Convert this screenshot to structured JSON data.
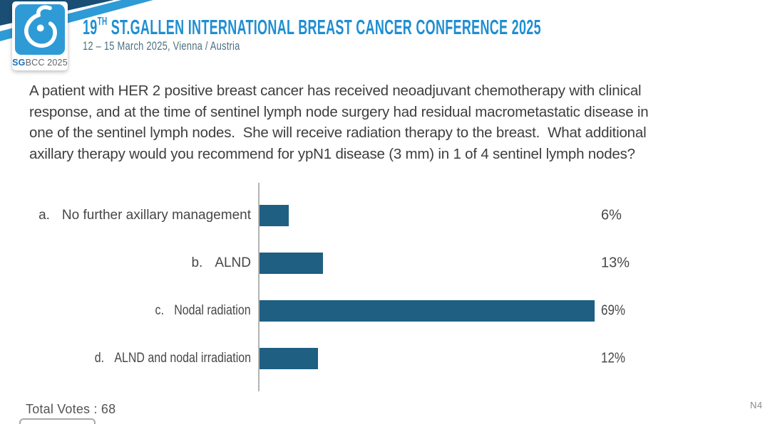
{
  "header": {
    "logo_sg": "SG",
    "logo_rest": "BCC 2025",
    "title_number": "19",
    "title_ordinal": "TH",
    "title_text": "ST.GALLEN INTERNATIONAL BREAST CANCER CONFERENCE 2025",
    "subtitle": "12 – 15 March 2025, Vienna / Austria"
  },
  "question_lines": [
    "A patient with HER 2 positive breast cancer has received neoadjuvant chemotherapy with clinical",
    "response, and at the time of sentinel lymph node surgery had residual macrometastatic disease in",
    "one of the sentinel lymph nodes.  She will receive radiation therapy to the breast.  What additional",
    "axillary therapy would you recommend for ypN1 disease (3 mm) in 1 of 4 sentinel lymph nodes?"
  ],
  "chart_data": {
    "type": "bar",
    "orientation": "horizontal",
    "option_letters": [
      "a.",
      "b.",
      "c.",
      "d."
    ],
    "categories": [
      "No further axillary management",
      "ALND",
      "Nodal radiation",
      "ALND and nodal irradiation"
    ],
    "values": [
      6,
      13,
      69,
      12
    ],
    "labels": [
      "6%",
      "13%",
      "69%",
      "12%"
    ],
    "unit": "percent",
    "xlim": [
      0,
      100
    ],
    "grid": false,
    "bar_color": "#1e5f82",
    "axis_color": "#b3b3b3",
    "value_label_position": "right-column",
    "total_votes": 68
  },
  "footer": {
    "total_votes": "Total Votes : 68",
    "slide_code": "N4"
  },
  "colors": {
    "navy_band": "#1a4e74",
    "accent_blue": "#2e9bd6",
    "title_blue": "#1f8ed2",
    "subtitle_gray_blue": "#4e7082",
    "bar": "#1e5f82"
  }
}
